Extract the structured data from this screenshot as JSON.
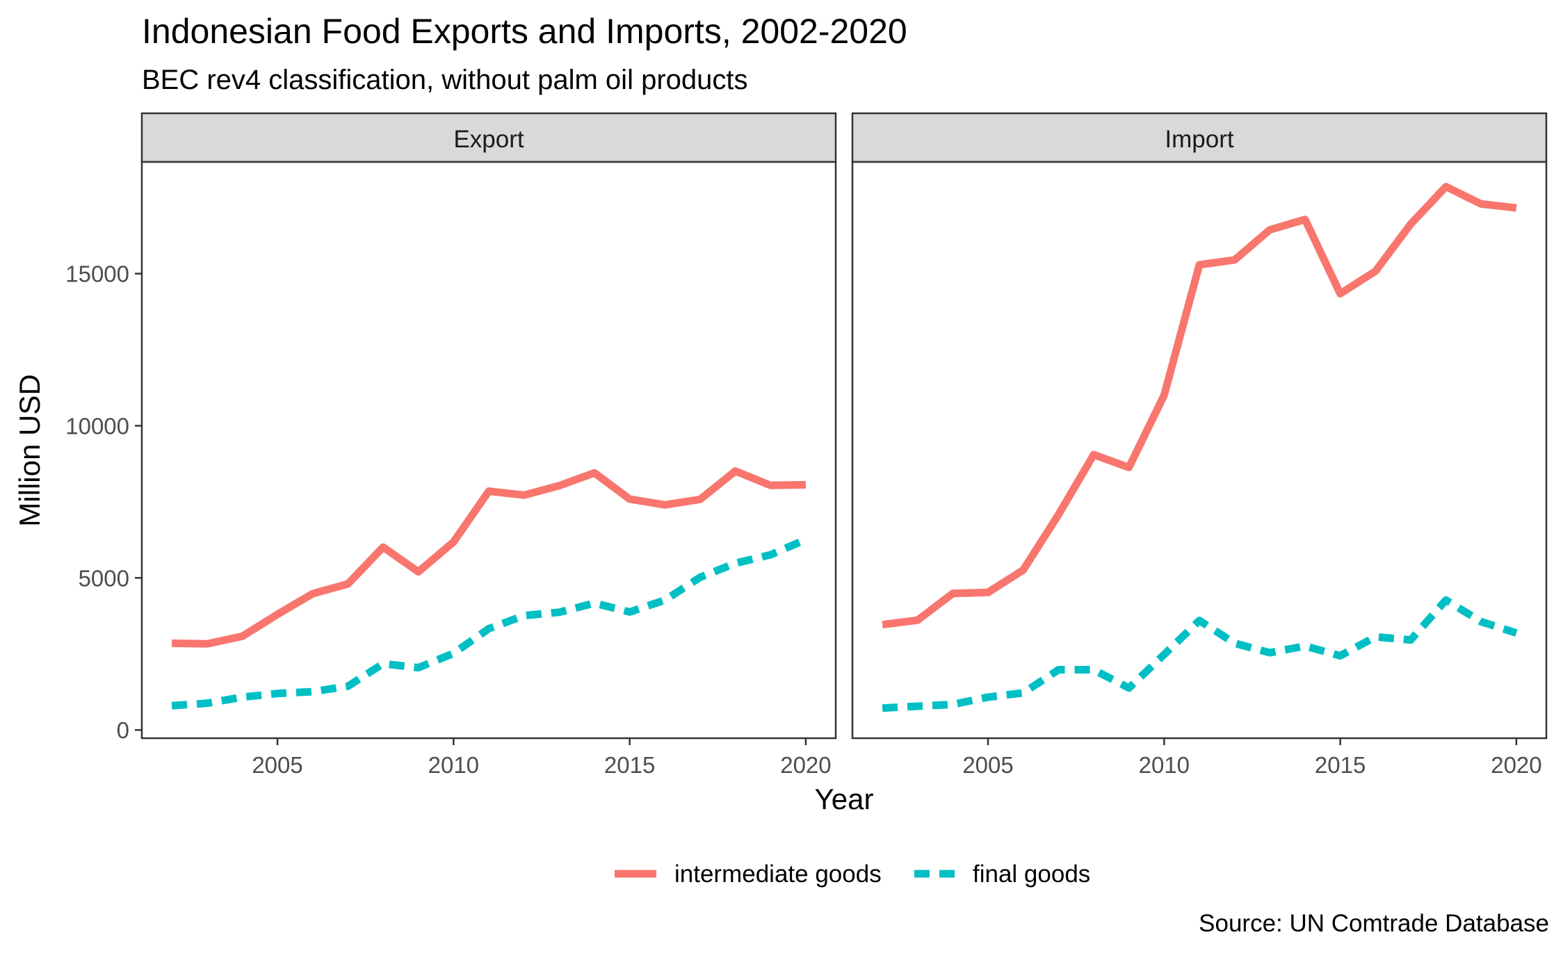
{
  "chart_data": {
    "type": "line",
    "title": "Indonesian Food Exports and Imports, 2002-2020",
    "subtitle": "BEC rev4 classification, without palm oil products",
    "xlabel": "Year",
    "ylabel": "Million USD",
    "caption": "Source: UN Comtrade Database",
    "xlim": [
      2001.15,
      2020.85
    ],
    "ylim": [
      -270,
      18670
    ],
    "x_ticks": [
      2005,
      2010,
      2015,
      2020
    ],
    "y_ticks": [
      0,
      5000,
      10000,
      15000
    ],
    "legend_position": "bottom",
    "grid": false,
    "colors": {
      "intermediate goods": "#F8766D",
      "final goods": "#00BFC4"
    },
    "x": [
      2002,
      2003,
      2004,
      2005,
      2006,
      2007,
      2008,
      2009,
      2010,
      2011,
      2012,
      2013,
      2014,
      2015,
      2016,
      2017,
      2018,
      2019,
      2020
    ],
    "panels": [
      {
        "label": "Export",
        "series": [
          {
            "name": "intermediate goods",
            "values": [
              2850,
              2830,
              3080,
              3800,
              4480,
              4800,
              6010,
              5200,
              6180,
              7850,
              7720,
              8030,
              8450,
              7590,
              7400,
              7580,
              8510,
              8040,
              8060
            ]
          },
          {
            "name": "final goods",
            "values": [
              800,
              880,
              1080,
              1200,
              1260,
              1440,
              2180,
              2050,
              2520,
              3330,
              3760,
              3870,
              4170,
              3880,
              4270,
              5020,
              5480,
              5760,
              6260
            ]
          }
        ]
      },
      {
        "label": "Import",
        "series": [
          {
            "name": "intermediate goods",
            "values": [
              3460,
              3610,
              4490,
              4520,
              5260,
              7080,
              9050,
              8630,
              11000,
              15290,
              15450,
              16440,
              16780,
              14340,
              15080,
              16630,
              17860,
              17290,
              17160
            ]
          },
          {
            "name": "final goods",
            "values": [
              720,
              780,
              840,
              1080,
              1220,
              1980,
              1980,
              1380,
              2480,
              3600,
              2850,
              2540,
              2760,
              2440,
              3060,
              2960,
              4270,
              3560,
              3190
            ]
          }
        ]
      }
    ]
  }
}
